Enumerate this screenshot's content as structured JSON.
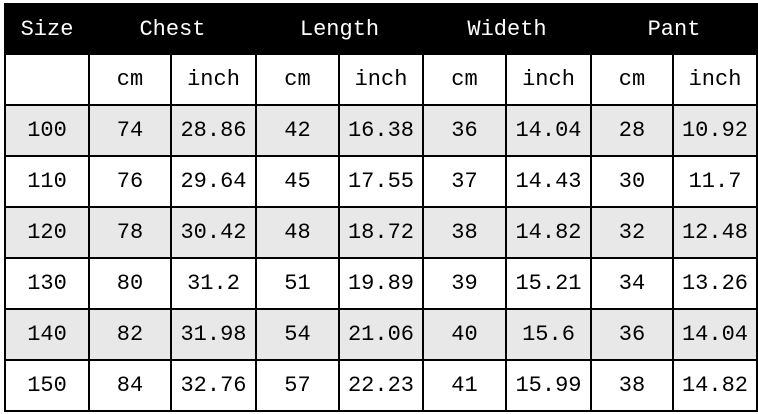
{
  "headers": [
    "Size",
    "Chest",
    "Length",
    "Wideth",
    "Pant"
  ],
  "units": [
    "",
    "cm",
    "inch",
    "cm",
    "inch",
    "cm",
    "inch",
    "cm",
    "inch"
  ],
  "rows": [
    [
      "100",
      "74",
      "28.86",
      "42",
      "16.38",
      "36",
      "14.04",
      "28",
      "10.92"
    ],
    [
      "110",
      "76",
      "29.64",
      "45",
      "17.55",
      "37",
      "14.43",
      "30",
      "11.7"
    ],
    [
      "120",
      "78",
      "30.42",
      "48",
      "18.72",
      "38",
      "14.82",
      "32",
      "12.48"
    ],
    [
      "130",
      "80",
      "31.2",
      "51",
      "19.89",
      "39",
      "15.21",
      "34",
      "13.26"
    ],
    [
      "140",
      "82",
      "31.98",
      "54",
      "21.06",
      "40",
      "15.6",
      "36",
      "14.04"
    ],
    [
      "150",
      "84",
      "32.76",
      "57",
      "22.23",
      "41",
      "15.99",
      "38",
      "14.82"
    ]
  ],
  "colors": {
    "header_bg": "#000000",
    "alt_row_bg": "#e8e8e8"
  }
}
